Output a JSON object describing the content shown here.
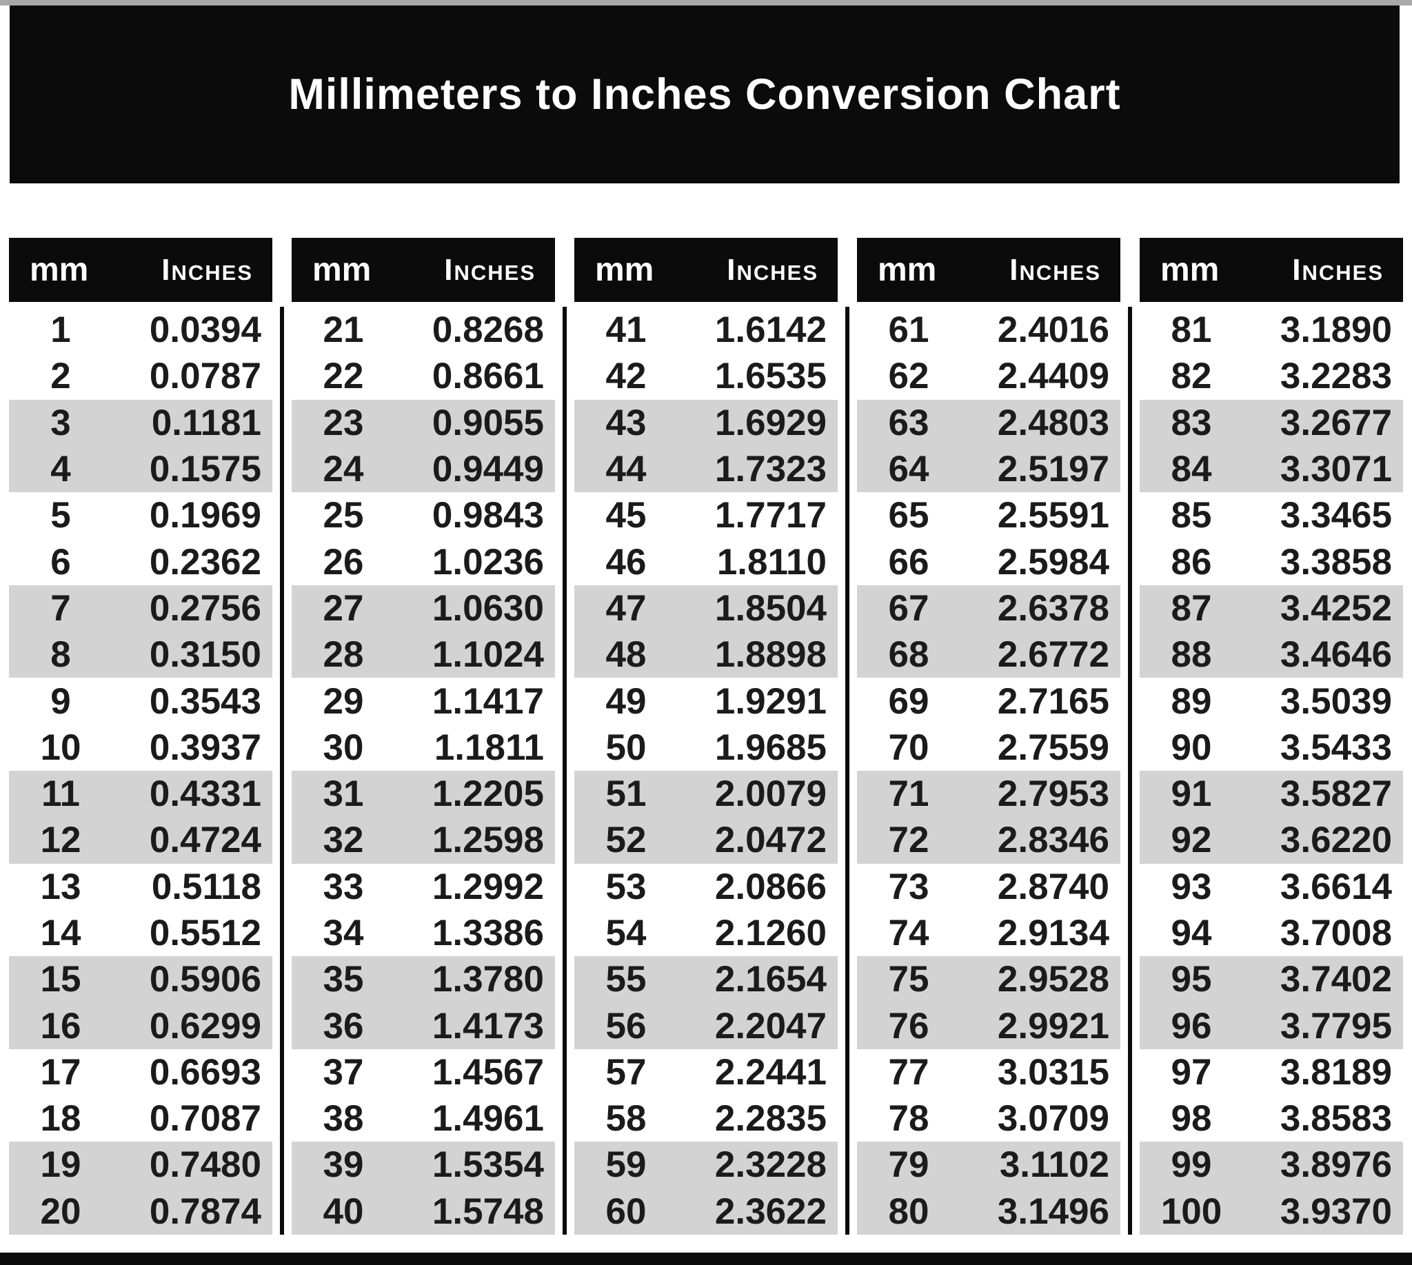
{
  "title": "Millimeters to Inches Conversion Chart",
  "colors": {
    "banner_bg": "#0b0b0b",
    "header_bg": "#0b0b0b",
    "row_stripe": "#d3d3d3",
    "divider": "#0b0b0b",
    "text": "#1b1b1b",
    "title_text": "#ffffff"
  },
  "chart_data": {
    "type": "table",
    "title": "Millimeters to Inches Conversion Chart",
    "column_headers": [
      "mm",
      "Inches"
    ],
    "layout": "5 side-by-side column groups of 20 rows, rows striped in alternating white/gray pairs",
    "column_groups": [
      {
        "rows": [
          [
            "1",
            "0.0394"
          ],
          [
            "2",
            "0.0787"
          ],
          [
            "3",
            "0.1181"
          ],
          [
            "4",
            "0.1575"
          ],
          [
            "5",
            "0.1969"
          ],
          [
            "6",
            "0.2362"
          ],
          [
            "7",
            "0.2756"
          ],
          [
            "8",
            "0.3150"
          ],
          [
            "9",
            "0.3543"
          ],
          [
            "10",
            "0.3937"
          ],
          [
            "11",
            "0.4331"
          ],
          [
            "12",
            "0.4724"
          ],
          [
            "13",
            "0.5118"
          ],
          [
            "14",
            "0.5512"
          ],
          [
            "15",
            "0.5906"
          ],
          [
            "16",
            "0.6299"
          ],
          [
            "17",
            "0.6693"
          ],
          [
            "18",
            "0.7087"
          ],
          [
            "19",
            "0.7480"
          ],
          [
            "20",
            "0.7874"
          ]
        ]
      },
      {
        "rows": [
          [
            "21",
            "0.8268"
          ],
          [
            "22",
            "0.8661"
          ],
          [
            "23",
            "0.9055"
          ],
          [
            "24",
            "0.9449"
          ],
          [
            "25",
            "0.9843"
          ],
          [
            "26",
            "1.0236"
          ],
          [
            "27",
            "1.0630"
          ],
          [
            "28",
            "1.1024"
          ],
          [
            "29",
            "1.1417"
          ],
          [
            "30",
            "1.1811"
          ],
          [
            "31",
            "1.2205"
          ],
          [
            "32",
            "1.2598"
          ],
          [
            "33",
            "1.2992"
          ],
          [
            "34",
            "1.3386"
          ],
          [
            "35",
            "1.3780"
          ],
          [
            "36",
            "1.4173"
          ],
          [
            "37",
            "1.4567"
          ],
          [
            "38",
            "1.4961"
          ],
          [
            "39",
            "1.5354"
          ],
          [
            "40",
            "1.5748"
          ]
        ]
      },
      {
        "rows": [
          [
            "41",
            "1.6142"
          ],
          [
            "42",
            "1.6535"
          ],
          [
            "43",
            "1.6929"
          ],
          [
            "44",
            "1.7323"
          ],
          [
            "45",
            "1.7717"
          ],
          [
            "46",
            "1.8110"
          ],
          [
            "47",
            "1.8504"
          ],
          [
            "48",
            "1.8898"
          ],
          [
            "49",
            "1.9291"
          ],
          [
            "50",
            "1.9685"
          ],
          [
            "51",
            "2.0079"
          ],
          [
            "52",
            "2.0472"
          ],
          [
            "53",
            "2.0866"
          ],
          [
            "54",
            "2.1260"
          ],
          [
            "55",
            "2.1654"
          ],
          [
            "56",
            "2.2047"
          ],
          [
            "57",
            "2.2441"
          ],
          [
            "58",
            "2.2835"
          ],
          [
            "59",
            "2.3228"
          ],
          [
            "60",
            "2.3622"
          ]
        ]
      },
      {
        "rows": [
          [
            "61",
            "2.4016"
          ],
          [
            "62",
            "2.4409"
          ],
          [
            "63",
            "2.4803"
          ],
          [
            "64",
            "2.5197"
          ],
          [
            "65",
            "2.5591"
          ],
          [
            "66",
            "2.5984"
          ],
          [
            "67",
            "2.6378"
          ],
          [
            "68",
            "2.6772"
          ],
          [
            "69",
            "2.7165"
          ],
          [
            "70",
            "2.7559"
          ],
          [
            "71",
            "2.7953"
          ],
          [
            "72",
            "2.8346"
          ],
          [
            "73",
            "2.8740"
          ],
          [
            "74",
            "2.9134"
          ],
          [
            "75",
            "2.9528"
          ],
          [
            "76",
            "2.9921"
          ],
          [
            "77",
            "3.0315"
          ],
          [
            "78",
            "3.0709"
          ],
          [
            "79",
            "3.1102"
          ],
          [
            "80",
            "3.1496"
          ]
        ]
      },
      {
        "rows": [
          [
            "81",
            "3.1890"
          ],
          [
            "82",
            "3.2283"
          ],
          [
            "83",
            "3.2677"
          ],
          [
            "84",
            "3.3071"
          ],
          [
            "85",
            "3.3465"
          ],
          [
            "86",
            "3.3858"
          ],
          [
            "87",
            "3.4252"
          ],
          [
            "88",
            "3.4646"
          ],
          [
            "89",
            "3.5039"
          ],
          [
            "90",
            "3.5433"
          ],
          [
            "91",
            "3.5827"
          ],
          [
            "92",
            "3.6220"
          ],
          [
            "93",
            "3.6614"
          ],
          [
            "94",
            "3.7008"
          ],
          [
            "95",
            "3.7402"
          ],
          [
            "96",
            "3.7795"
          ],
          [
            "97",
            "3.8189"
          ],
          [
            "98",
            "3.8583"
          ],
          [
            "99",
            "3.8976"
          ],
          [
            "100",
            "3.9370"
          ]
        ]
      }
    ]
  }
}
